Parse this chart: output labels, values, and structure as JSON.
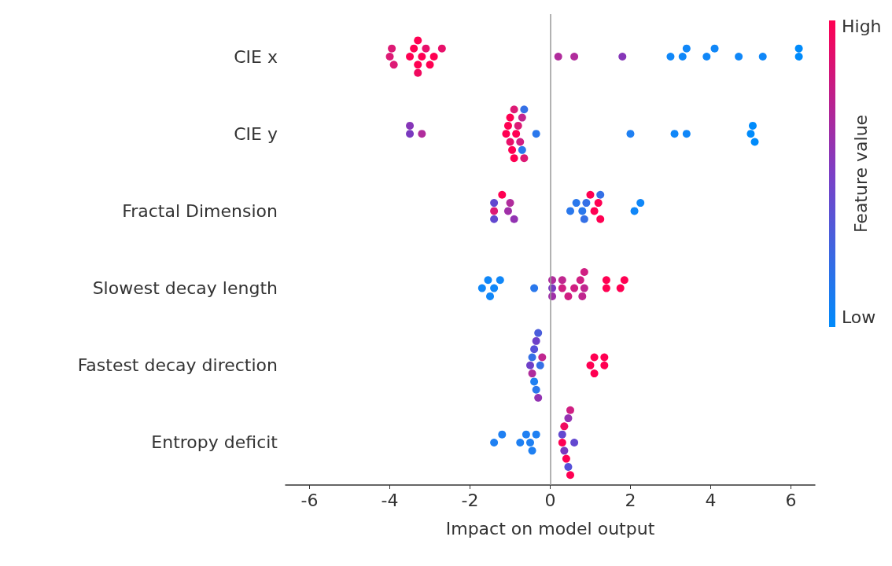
{
  "chart_data": {
    "type": "scatter",
    "orientation": "horizontal",
    "xlabel": "Impact on model output",
    "clabel": "Feature value",
    "annotations": [
      "High",
      "Low"
    ],
    "categories": [
      "CIE x",
      "CIE y",
      "Fractal Dimension",
      "Slowest decay length",
      "Fastest decay direction",
      "Entropy deficit"
    ],
    "xlim": [
      -6.6,
      6.6
    ],
    "xticks": [
      -6,
      -4,
      -2,
      0,
      2,
      4,
      6
    ],
    "grid": false,
    "marker": "circle",
    "ref_lines": [
      {
        "axis": "x",
        "value": 0,
        "color": "#999999"
      }
    ],
    "series": [
      {
        "x": [
          "CIE x",
          "CIE x",
          "CIE x",
          "CIE x",
          "CIE x",
          "CIE x",
          "CIE x",
          "CIE x",
          "CIE x",
          "CIE x",
          "CIE x",
          "CIE x",
          "CIE x",
          "CIE x",
          "CIE x",
          "CIE x",
          "CIE x",
          "CIE x",
          "CIE x",
          "CIE x",
          "CIE x",
          "CIE x",
          "CIE x",
          "CIE x",
          "CIE x"
        ],
        "values": [
          -4.0,
          -3.95,
          -3.9,
          -3.5,
          -3.4,
          -3.3,
          -3.3,
          -3.3,
          -3.2,
          -3.1,
          -3.0,
          -2.9,
          -2.7,
          0.2,
          0.6,
          1.8,
          3.0,
          3.3,
          3.4,
          3.9,
          4.1,
          4.7,
          5.3,
          6.2,
          6.2
        ],
        "colors": [
          "#dd1a75",
          "#dd1a75",
          "#dd1a75",
          "#ff0052",
          "#ff0052",
          "#ff0052",
          "#ff0052",
          "#f00a5f",
          "#ff0052",
          "#e8106a",
          "#ff0052",
          "#ff0052",
          "#e8106a",
          "#b02c9c",
          "#b02c9c",
          "#8636b8",
          "#1087f8",
          "#1087f8",
          "#1087f8",
          "#1087f8",
          "#1087f8",
          "#1087f8",
          "#1087f8",
          "#008bfb",
          "#008bfb"
        ]
      },
      {
        "x": [
          "CIE y",
          "CIE y",
          "CIE y",
          "CIE y",
          "CIE y",
          "CIE y",
          "CIE y",
          "CIE y",
          "CIE y",
          "CIE y",
          "CIE y",
          "CIE y",
          "CIE y",
          "CIE y",
          "CIE y",
          "CIE y",
          "CIE y",
          "CIE y",
          "CIE y",
          "CIE y",
          "CIE y",
          "CIE y",
          "CIE y",
          "CIE y"
        ],
        "values": [
          -3.5,
          -3.5,
          -3.2,
          -1.1,
          -1.05,
          -1.0,
          -1.0,
          -0.95,
          -0.9,
          -0.9,
          -0.85,
          -0.8,
          -0.75,
          -0.7,
          -0.7,
          -0.65,
          -0.65,
          -0.35,
          2.0,
          3.1,
          3.4,
          5.0,
          5.05,
          5.1
        ],
        "colors": [
          "#7a39bf",
          "#8636b8",
          "#b02c9c",
          "#ff0052",
          "#ff0052",
          "#e8106a",
          "#ff0052",
          "#ff0052",
          "#dd1a75",
          "#ff0052",
          "#ff0052",
          "#dd1a75",
          "#d01f82",
          "#c0268f",
          "#2a78ec",
          "#3570e6",
          "#dd1a75",
          "#2a78ec",
          "#1f80f2",
          "#1087f8",
          "#1087f8",
          "#008bfb",
          "#008bfb",
          "#008bfb"
        ]
      },
      {
        "x": [
          "Fractal Dimension",
          "Fractal Dimension",
          "Fractal Dimension",
          "Fractal Dimension",
          "Fractal Dimension",
          "Fractal Dimension",
          "Fractal Dimension",
          "Fractal Dimension",
          "Fractal Dimension",
          "Fractal Dimension",
          "Fractal Dimension",
          "Fractal Dimension",
          "Fractal Dimension",
          "Fractal Dimension",
          "Fractal Dimension",
          "Fractal Dimension",
          "Fractal Dimension",
          "Fractal Dimension",
          "Fractal Dimension"
        ],
        "values": [
          -1.4,
          -1.4,
          -1.4,
          -1.2,
          -1.05,
          -1.0,
          -0.9,
          0.5,
          0.65,
          0.8,
          0.85,
          0.9,
          1.0,
          1.1,
          1.2,
          1.25,
          1.25,
          2.1,
          2.25
        ],
        "colors": [
          "#dd1a75",
          "#6248d0",
          "#6248d0",
          "#ff0052",
          "#a030a8",
          "#b02c9c",
          "#9233b2",
          "#2a78ec",
          "#2a78ec",
          "#2a78ec",
          "#3570e6",
          "#3570e6",
          "#ff0052",
          "#ff0052",
          "#ff0052",
          "#ff0052",
          "#3570e6",
          "#1087f8",
          "#1087f8"
        ]
      },
      {
        "x": [
          "Slowest decay length",
          "Slowest decay length",
          "Slowest decay length",
          "Slowest decay length",
          "Slowest decay length",
          "Slowest decay length",
          "Slowest decay length",
          "Slowest decay length",
          "Slowest decay length",
          "Slowest decay length",
          "Slowest decay length",
          "Slowest decay length",
          "Slowest decay length",
          "Slowest decay length",
          "Slowest decay length",
          "Slowest decay length",
          "Slowest decay length",
          "Slowest decay length",
          "Slowest decay length",
          "Slowest decay length",
          "Slowest decay length"
        ],
        "values": [
          -1.7,
          -1.55,
          -1.5,
          -1.4,
          -1.25,
          -0.4,
          0.05,
          0.05,
          0.05,
          0.3,
          0.3,
          0.45,
          0.6,
          0.75,
          0.8,
          0.85,
          0.85,
          1.4,
          1.4,
          1.75,
          1.85
        ],
        "colors": [
          "#1087f8",
          "#1087f8",
          "#1087f8",
          "#1087f8",
          "#1087f8",
          "#2a78ec",
          "#7a39bf",
          "#b02c9c",
          "#a030a8",
          "#d01f82",
          "#c0268f",
          "#d01f82",
          "#d01f82",
          "#d01f82",
          "#c0268f",
          "#c0268f",
          "#d01f82",
          "#ff0052",
          "#ff0052",
          "#ff0052",
          "#ff0052"
        ]
      },
      {
        "x": [
          "Fastest decay direction",
          "Fastest decay direction",
          "Fastest decay direction",
          "Fastest decay direction",
          "Fastest decay direction",
          "Fastest decay direction",
          "Fastest decay direction",
          "Fastest decay direction",
          "Fastest decay direction",
          "Fastest decay direction",
          "Fastest decay direction",
          "Fastest decay direction",
          "Fastest decay direction",
          "Fastest decay direction",
          "Fastest decay direction",
          "Fastest decay direction"
        ],
        "values": [
          -0.5,
          -0.45,
          -0.45,
          -0.4,
          -0.4,
          -0.35,
          -0.35,
          -0.3,
          -0.3,
          -0.25,
          -0.2,
          1.0,
          1.1,
          1.1,
          1.35,
          1.35
        ],
        "colors": [
          "#6e40c8",
          "#3570e6",
          "#b02c9c",
          "#5650d8",
          "#1f80f2",
          "#6e40c8",
          "#2a78ec",
          "#4a5ddb",
          "#9233b2",
          "#3570e6",
          "#c0268f",
          "#ff0052",
          "#ff0052",
          "#ff0052",
          "#ff0052",
          "#ff0052"
        ]
      },
      {
        "x": [
          "Entropy deficit",
          "Entropy deficit",
          "Entropy deficit",
          "Entropy deficit",
          "Entropy deficit",
          "Entropy deficit",
          "Entropy deficit",
          "Entropy deficit",
          "Entropy deficit",
          "Entropy deficit",
          "Entropy deficit",
          "Entropy deficit",
          "Entropy deficit",
          "Entropy deficit",
          "Entropy deficit",
          "Entropy deficit",
          "Entropy deficit"
        ],
        "values": [
          -1.4,
          -1.2,
          -0.75,
          -0.6,
          -0.5,
          -0.45,
          -0.35,
          0.3,
          0.3,
          0.35,
          0.35,
          0.4,
          0.45,
          0.45,
          0.5,
          0.5,
          0.6
        ],
        "colors": [
          "#1f80f2",
          "#1f80f2",
          "#1f80f2",
          "#1f80f2",
          "#1f80f2",
          "#1f80f2",
          "#1f80f2",
          "#ff0052",
          "#6248d0",
          "#7a39bf",
          "#f00a5f",
          "#ff0052",
          "#9233b2",
          "#5650d8",
          "#d01f82",
          "#ff0052",
          "#6248d0"
        ]
      }
    ]
  }
}
